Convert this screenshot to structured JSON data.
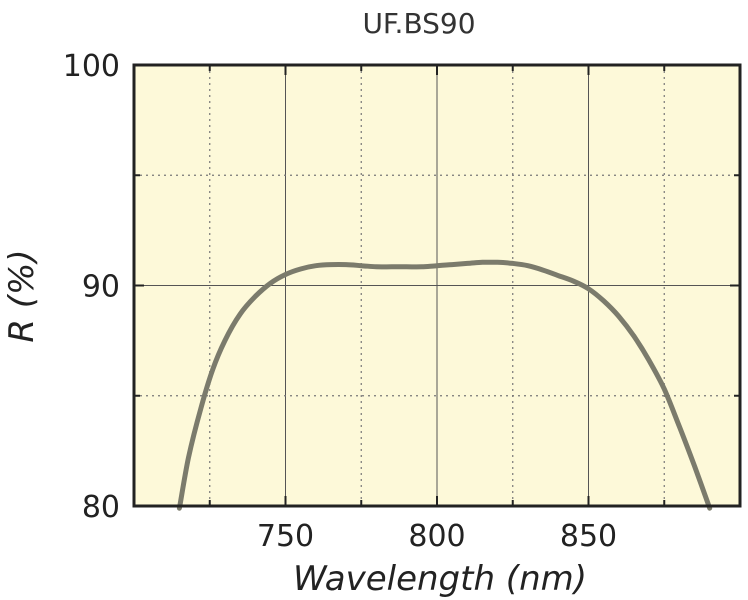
{
  "chart_data": {
    "type": "line",
    "title": "UF.BS90",
    "xlabel": "Wavelength (nm)",
    "ylabel": "R (%)",
    "xlim": [
      700,
      900
    ],
    "ylim": [
      80,
      100
    ],
    "xticks": [
      750,
      800,
      850
    ],
    "xtick_labels": [
      "750",
      "800",
      "850"
    ],
    "yticks": [
      80,
      90,
      100
    ],
    "ytick_labels": [
      "80",
      "90",
      "100"
    ],
    "grid": true,
    "legend": "none",
    "series": [
      {
        "x": [
          715,
          718,
          722,
          726,
          730,
          735,
          740,
          745,
          750,
          755,
          760,
          765,
          770,
          775,
          780,
          785,
          790,
          795,
          800,
          805,
          810,
          815,
          820,
          825,
          830,
          835,
          840,
          845,
          850,
          855,
          860,
          865,
          870,
          875,
          880,
          885,
          890
        ],
        "y": [
          79.9,
          82.2,
          84.4,
          86.2,
          87.5,
          88.7,
          89.5,
          90.1,
          90.5,
          90.75,
          90.9,
          90.95,
          90.95,
          90.9,
          90.85,
          90.85,
          90.85,
          90.85,
          90.9,
          90.95,
          91.0,
          91.05,
          91.05,
          91.0,
          90.9,
          90.7,
          90.45,
          90.2,
          89.85,
          89.3,
          88.6,
          87.7,
          86.6,
          85.3,
          83.6,
          81.8,
          79.9
        ]
      }
    ],
    "colors": {
      "line": "#7b7b6c",
      "plot_background": "#fdf9d9",
      "frame": "#222222",
      "major_grid": "#555555",
      "minor_grid": "#777777"
    }
  }
}
